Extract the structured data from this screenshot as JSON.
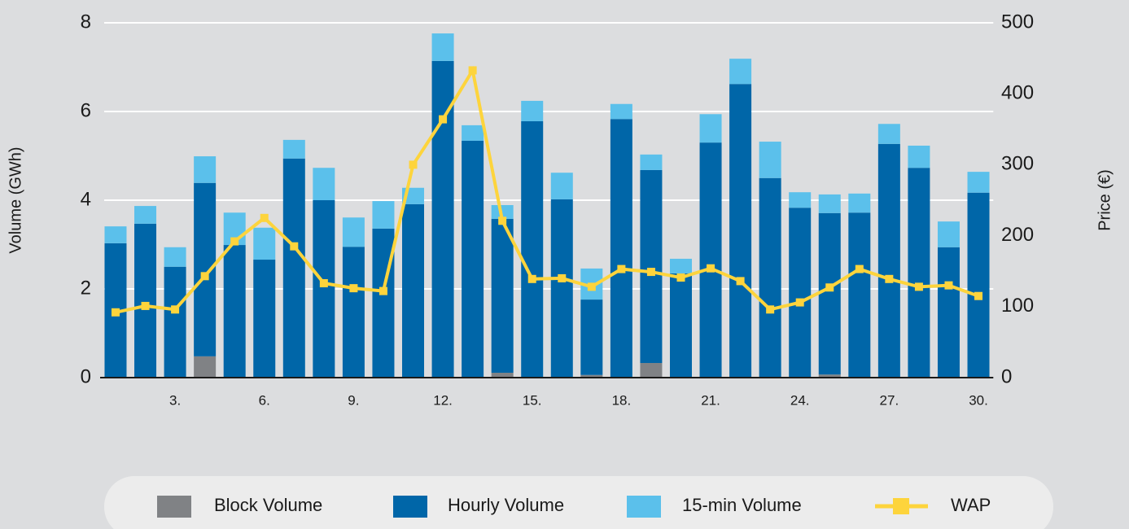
{
  "chart_data": {
    "type": "bar",
    "y_label": "Volume (GWh)",
    "y2_label": "Price (€)",
    "categories": [
      null,
      null,
      "3.",
      null,
      null,
      "6.",
      null,
      null,
      "9.",
      null,
      null,
      "12.",
      null,
      null,
      "15.",
      null,
      null,
      "18.",
      null,
      null,
      "21.",
      null,
      null,
      "24.",
      null,
      null,
      "27.",
      null,
      null,
      "30."
    ],
    "series": [
      {
        "name": "Block Volume",
        "color": "#808285",
        "values": [
          0,
          0,
          0,
          0.48,
          0,
          0,
          0,
          0,
          0,
          0,
          0,
          0,
          0,
          0.11,
          0,
          0,
          0.06,
          0,
          0.33,
          0,
          0,
          0,
          0,
          0,
          0.07,
          0,
          0,
          0,
          0,
          0
        ]
      },
      {
        "name": "Hourly Volume",
        "color": "#0066a8",
        "values": [
          3.03,
          3.47,
          2.5,
          3.91,
          2.99,
          2.66,
          4.94,
          4.0,
          2.95,
          3.36,
          3.91,
          7.14,
          5.34,
          3.47,
          5.78,
          4.02,
          1.7,
          5.83,
          4.35,
          2.35,
          5.3,
          6.62,
          4.5,
          3.83,
          3.64,
          3.72,
          5.27,
          4.73,
          2.94,
          4.17
        ]
      },
      {
        "name": "15-min Volume",
        "color": "#5bc0eb",
        "values": [
          0.38,
          0.4,
          0.44,
          0.6,
          0.73,
          0.72,
          0.42,
          0.73,
          0.66,
          0.62,
          0.37,
          0.62,
          0.35,
          0.31,
          0.46,
          0.6,
          0.7,
          0.34,
          0.35,
          0.33,
          0.64,
          0.57,
          0.82,
          0.35,
          0.42,
          0.43,
          0.45,
          0.5,
          0.58,
          0.47
        ]
      },
      {
        "name": "WAP",
        "color": "#fdd43c",
        "type": "line",
        "axis": "y2",
        "values": [
          92,
          101,
          96,
          143,
          192,
          225,
          185,
          133,
          126,
          122,
          300,
          364,
          433,
          221,
          139,
          140,
          128,
          153,
          149,
          141,
          154,
          136,
          96,
          106,
          127,
          153,
          139,
          128,
          130,
          115
        ]
      }
    ],
    "ylim": [
      0,
      8
    ],
    "yticks": [
      0,
      2,
      4,
      6,
      8
    ],
    "y2lim": [
      0,
      500
    ],
    "y2ticks": [
      0,
      100,
      200,
      300,
      400,
      500
    ],
    "grid": true,
    "legend": "bottom"
  }
}
